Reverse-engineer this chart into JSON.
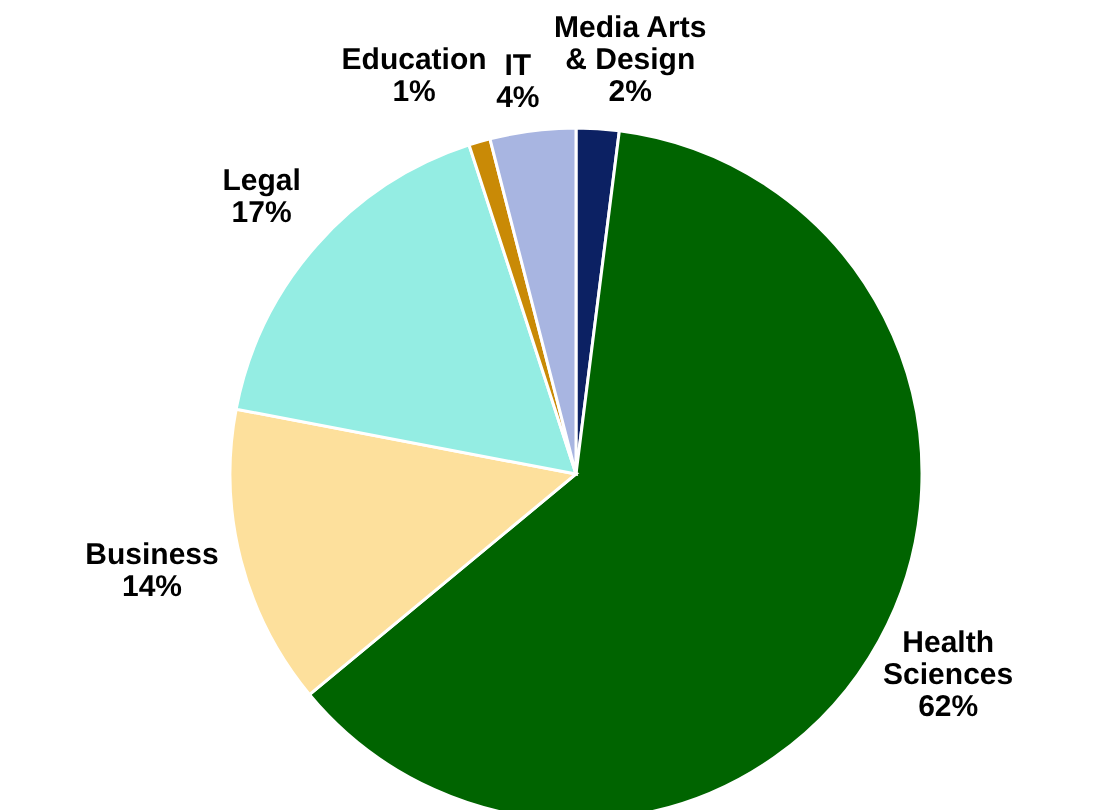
{
  "chart_data": {
    "type": "pie",
    "categories": [
      "Media Arts & Design",
      "Health Sciences",
      "Business",
      "Legal",
      "Education",
      "IT"
    ],
    "values": [
      2,
      62,
      14,
      17,
      1,
      4
    ],
    "colors": [
      "#0c2163",
      "#006400",
      "#fde09c",
      "#94ede3",
      "#c98a06",
      "#a8b5e1"
    ],
    "value_labels": [
      "2%",
      "62%",
      "14%",
      "17%",
      "1%",
      "4%"
    ]
  }
}
